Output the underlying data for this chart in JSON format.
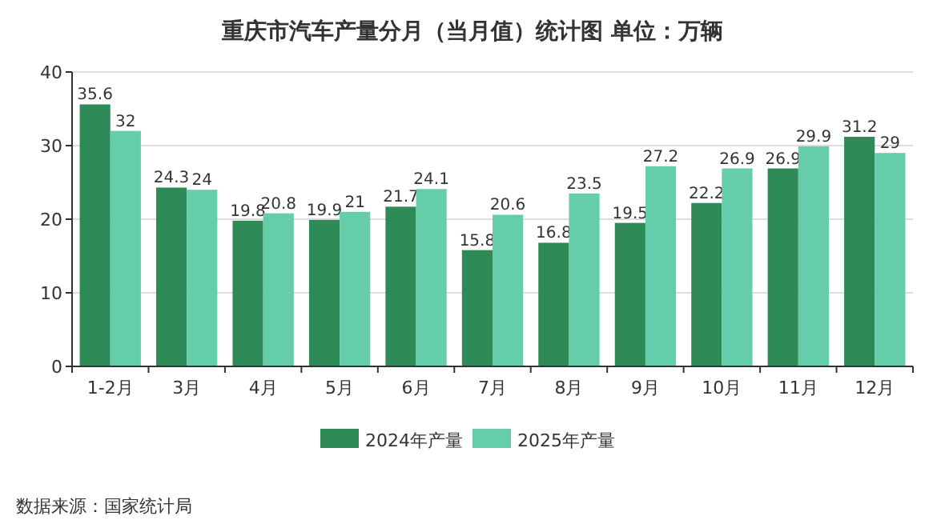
{
  "chart_data": {
    "type": "bar",
    "title": "重庆市汽车产量分月（当月值）统计图 单位：万辆",
    "categories": [
      "1-2月",
      "3月",
      "4月",
      "5月",
      "6月",
      "7月",
      "8月",
      "9月",
      "10月",
      "11月",
      "12月"
    ],
    "series": [
      {
        "name": "2024年产量",
        "color": "#2e8b57",
        "values": [
          35.6,
          24.3,
          19.8,
          19.9,
          21.7,
          15.8,
          16.8,
          19.5,
          22.2,
          26.9,
          31.2
        ]
      },
      {
        "name": "2025年产量",
        "color": "#66cdaa",
        "values": [
          32,
          24,
          20.8,
          21,
          24.1,
          20.6,
          23.5,
          27.2,
          26.9,
          29.9,
          29
        ]
      }
    ],
    "ylim": [
      0,
      40
    ],
    "yticks": [
      0,
      10,
      20,
      30,
      40
    ],
    "grid": "y",
    "legend": "bottom",
    "data_labels": true,
    "annotations": [
      "数据来源：国家统计局"
    ]
  }
}
